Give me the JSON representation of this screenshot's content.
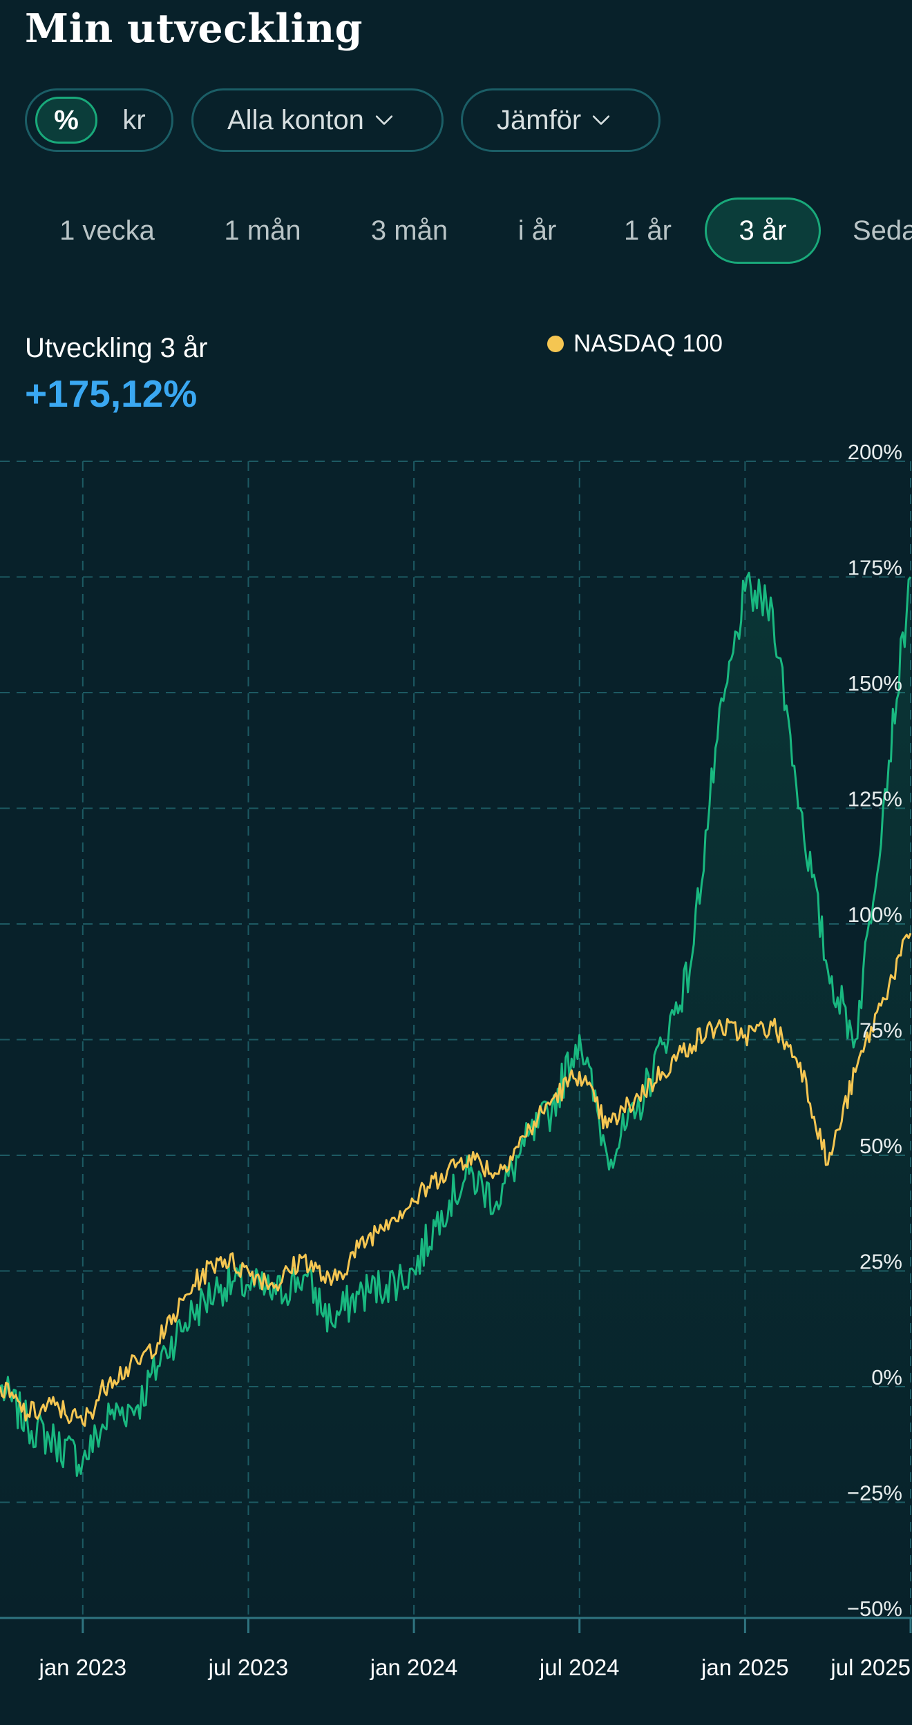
{
  "header": {
    "title": "Min utveckling"
  },
  "filters": {
    "unit_options": [
      "%",
      "kr"
    ],
    "selected_unit": "%",
    "accounts_label": "Alla konton",
    "compare_label": "Jämför"
  },
  "periods": [
    {
      "label": "1 vecka",
      "active": false
    },
    {
      "label": "1 mån",
      "active": false
    },
    {
      "label": "3 mån",
      "active": false
    },
    {
      "label": "i år",
      "active": false
    },
    {
      "label": "1 år",
      "active": false
    },
    {
      "label": "3 år",
      "active": true
    },
    {
      "label": "Sedan start",
      "active": false
    }
  ],
  "summary": {
    "label": "Utveckling 3 år",
    "value": "+175,12%"
  },
  "colors": {
    "background": "#08212a",
    "portfolio": "#19b880",
    "benchmark": "#f5c652",
    "accent_blue": "#3aa8f2",
    "grid": "#1d5a63"
  },
  "chart_data": {
    "type": "line",
    "x_tick_labels": [
      "jan 2023",
      "jul 2023",
      "jan 2024",
      "jul 2024",
      "jan 2025",
      "jul 2025"
    ],
    "y_tick_labels": [
      "200%",
      "175%",
      "150%",
      "125%",
      "100%",
      "75%",
      "50%",
      "25%",
      "0%",
      "−25%",
      "−50%"
    ],
    "ylim": [
      -50,
      200
    ],
    "xlim": [
      "2022-10",
      "2025-07"
    ],
    "grid": true,
    "legend": "top-center",
    "series": [
      {
        "role": "portfolio",
        "color": "#19b880",
        "filled": true,
        "points": [
          [
            "2022-10",
            0
          ],
          [
            "2022-11",
            -8
          ],
          [
            "2022-12",
            -12
          ],
          [
            "2023-01",
            -16
          ],
          [
            "2023-02",
            -6
          ],
          [
            "2023-03",
            -4
          ],
          [
            "2023-04",
            8
          ],
          [
            "2023-05",
            16
          ],
          [
            "2023-06",
            22
          ],
          [
            "2023-07",
            22
          ],
          [
            "2023-08",
            20
          ],
          [
            "2023-09",
            24
          ],
          [
            "2023-10",
            14
          ],
          [
            "2023-11",
            20
          ],
          [
            "2023-12",
            22
          ],
          [
            "2024-01",
            25
          ],
          [
            "2024-02",
            38
          ],
          [
            "2024-03",
            46
          ],
          [
            "2024-04",
            40
          ],
          [
            "2024-05",
            52
          ],
          [
            "2024-06",
            60
          ],
          [
            "2024-07",
            76
          ],
          [
            "2024-08",
            50
          ],
          [
            "2024-09",
            58
          ],
          [
            "2024-10",
            74
          ],
          [
            "2024-11",
            90
          ],
          [
            "2024-12",
            140
          ],
          [
            "2025-01",
            172
          ],
          [
            "2025-02",
            168
          ],
          [
            "2025-03",
            125
          ],
          [
            "2025-04",
            90
          ],
          [
            "2025-05",
            75
          ],
          [
            "2025-06",
            125
          ],
          [
            "2025-07",
            175
          ]
        ]
      },
      {
        "name": "NASDAQ 100",
        "color": "#f5c652",
        "filled": false,
        "points": [
          [
            "2022-10",
            0
          ],
          [
            "2022-11",
            -6
          ],
          [
            "2022-12",
            -4
          ],
          [
            "2023-01",
            -8
          ],
          [
            "2023-02",
            2
          ],
          [
            "2023-03",
            5
          ],
          [
            "2023-04",
            12
          ],
          [
            "2023-05",
            22
          ],
          [
            "2023-06",
            28
          ],
          [
            "2023-07",
            25
          ],
          [
            "2023-08",
            22
          ],
          [
            "2023-09",
            28
          ],
          [
            "2023-10",
            22
          ],
          [
            "2023-11",
            30
          ],
          [
            "2023-12",
            36
          ],
          [
            "2024-01",
            40
          ],
          [
            "2024-02",
            46
          ],
          [
            "2024-03",
            50
          ],
          [
            "2024-04",
            46
          ],
          [
            "2024-05",
            54
          ],
          [
            "2024-06",
            62
          ],
          [
            "2024-07",
            68
          ],
          [
            "2024-08",
            56
          ],
          [
            "2024-09",
            62
          ],
          [
            "2024-10",
            68
          ],
          [
            "2024-11",
            74
          ],
          [
            "2024-12",
            78
          ],
          [
            "2025-01",
            76
          ],
          [
            "2025-02",
            78
          ],
          [
            "2025-03",
            70
          ],
          [
            "2025-04",
            48
          ],
          [
            "2025-05",
            68
          ],
          [
            "2025-06",
            84
          ],
          [
            "2025-07",
            98
          ]
        ]
      }
    ]
  }
}
